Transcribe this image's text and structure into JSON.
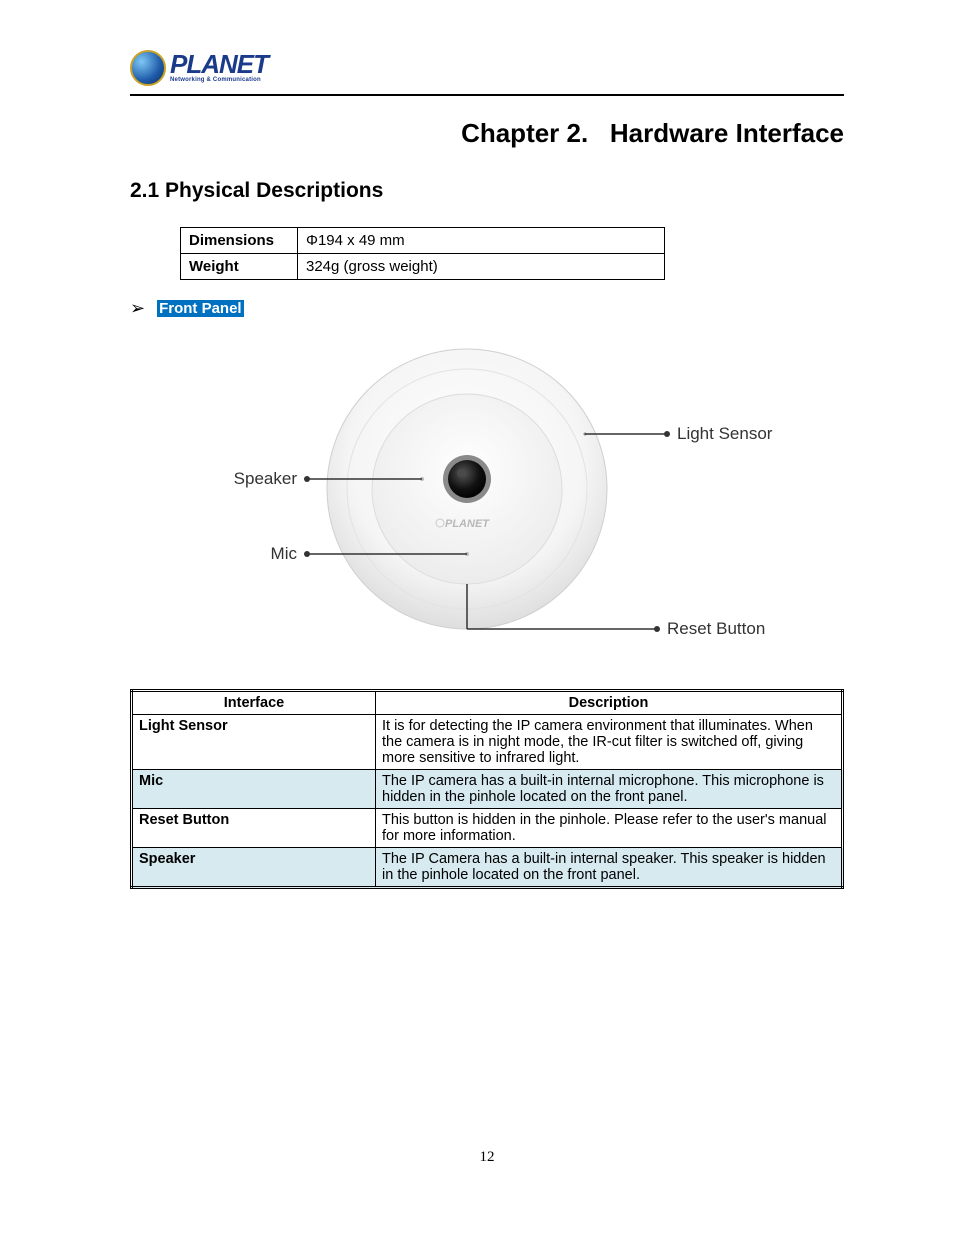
{
  "logo": {
    "name": "PLANET",
    "tagline": "Networking & Communication"
  },
  "chapter": {
    "number": "Chapter 2.",
    "title": "Hardware Interface"
  },
  "section": {
    "number": "2.1",
    "title": "Physical Descriptions"
  },
  "specs": {
    "rows": [
      {
        "label": "Dimensions",
        "value": "Φ194 x 49 mm"
      },
      {
        "label": "Weight",
        "value": "324g (gross weight)"
      }
    ]
  },
  "panel_heading": "Front Panel",
  "diagram": {
    "labels": {
      "light_sensor": "Light Sensor",
      "speaker": "Speaker",
      "mic": "Mic",
      "reset_button": "Reset Button",
      "brand": "PLANET"
    },
    "colors": {
      "body_outer": "#fdfdfd",
      "body_shadow": "#d9d9d9",
      "lens_outer": "#888888",
      "lens_inner": "#1a1a1a",
      "callout_line": "#333333",
      "label_text": "#333333"
    }
  },
  "desc_table": {
    "headers": [
      "Interface",
      "Description"
    ],
    "rows": [
      {
        "iface": "Light Sensor",
        "desc": "It is for detecting the IP camera environment that illuminates. When the camera is in night mode, the IR-cut filter is switched off, giving more sensitive to infrared light.",
        "alt": false
      },
      {
        "iface": "Mic",
        "desc": "The IP camera has a built-in internal microphone. This microphone is hidden in the pinhole located on the front panel.",
        "alt": true
      },
      {
        "iface": "Reset Button",
        "desc": "This button is hidden in the pinhole. Please refer to the user's manual for more information.",
        "alt": false
      },
      {
        "iface": "Speaker",
        "desc": "The IP Camera has a built-in internal speaker. This speaker is hidden in the pinhole located on the front panel.",
        "alt": true
      }
    ],
    "alt_bg": "#d6eaf0"
  },
  "page_number": "12"
}
